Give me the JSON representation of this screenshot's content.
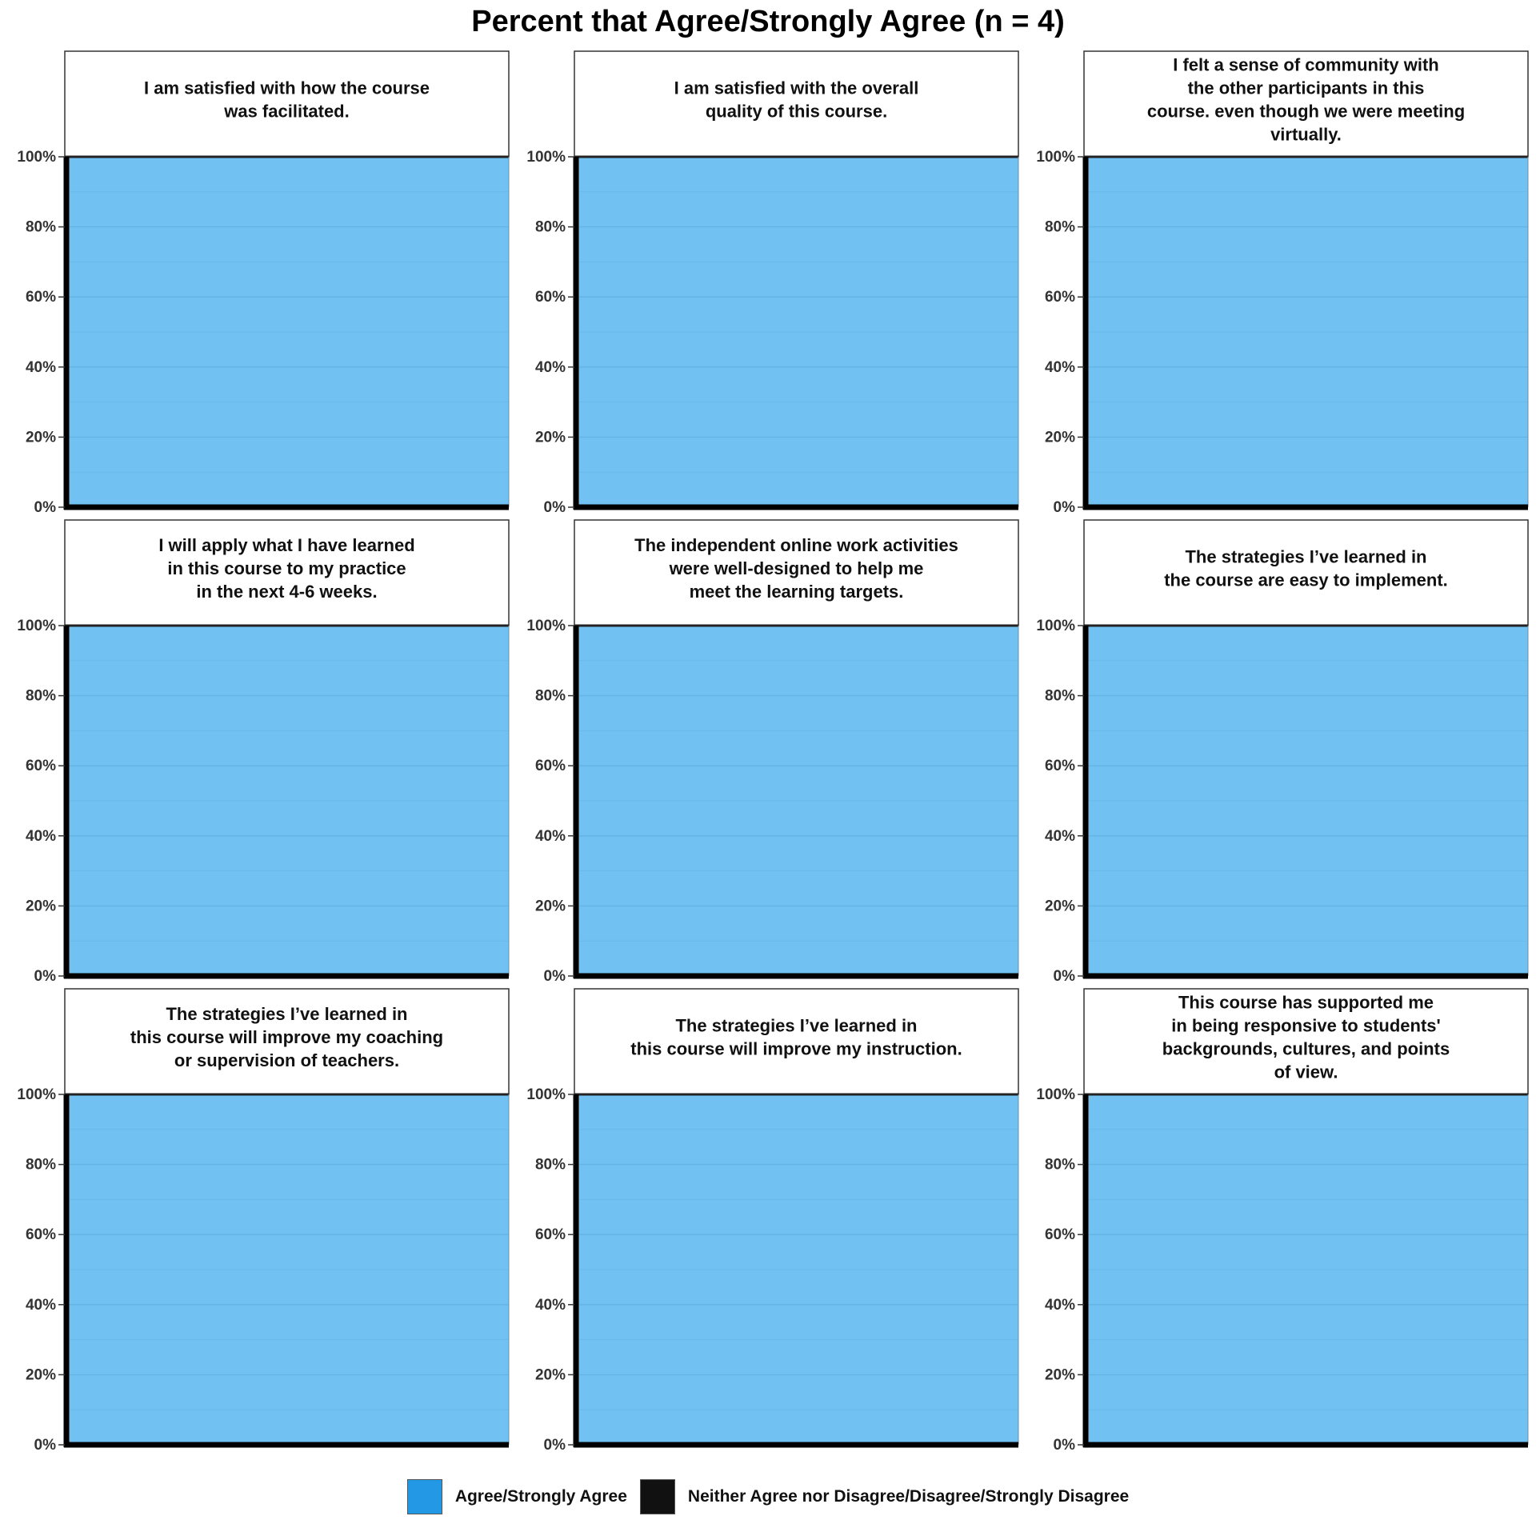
{
  "title": "Percent that Agree/Strongly Agree (n = 4)",
  "colors": {
    "agree": "#71c2f2",
    "agree_swatch": "#2399e5",
    "neither": "#111111",
    "gridline": "#5aa9df",
    "axis": "#000000",
    "strip_border": "#333333"
  },
  "legend": {
    "items": [
      {
        "label": "Agree/Strongly Agree",
        "color": "#2399e5"
      },
      {
        "label": "Neither Agree nor Disagree/Disagree/Strongly Disagree",
        "color": "#111111"
      }
    ]
  },
  "chart_data": {
    "type": "bar",
    "facets": [
      {
        "title_lines": [
          "I am satisfied with how the course",
          "was facilitated."
        ],
        "series": [
          {
            "name": "Agree/Strongly Agree",
            "value": 100
          },
          {
            "name": "Neither Agree nor Disagree/Disagree/Strongly Disagree",
            "value": 0
          }
        ]
      },
      {
        "title_lines": [
          "I am satisfied with the overall",
          "quality of this course."
        ],
        "series": [
          {
            "name": "Agree/Strongly Agree",
            "value": 100
          },
          {
            "name": "Neither Agree nor Disagree/Disagree/Strongly Disagree",
            "value": 0
          }
        ]
      },
      {
        "title_lines": [
          "I felt a sense of community with",
          "the other participants in this",
          "course. even though we were meeting",
          "virtually."
        ],
        "series": [
          {
            "name": "Agree/Strongly Agree",
            "value": 100
          },
          {
            "name": "Neither Agree nor Disagree/Disagree/Strongly Disagree",
            "value": 0
          }
        ]
      },
      {
        "title_lines": [
          "I will apply what I have learned",
          "in this course to my practice",
          "in the next 4-6 weeks."
        ],
        "series": [
          {
            "name": "Agree/Strongly Agree",
            "value": 100
          },
          {
            "name": "Neither Agree nor Disagree/Disagree/Strongly Disagree",
            "value": 0
          }
        ]
      },
      {
        "title_lines": [
          "The independent online work activities",
          "were well-designed to help me",
          "meet the learning targets."
        ],
        "series": [
          {
            "name": "Agree/Strongly Agree",
            "value": 100
          },
          {
            "name": "Neither Agree nor Disagree/Disagree/Strongly Disagree",
            "value": 0
          }
        ]
      },
      {
        "title_lines": [
          "The strategies I’ve learned in",
          "the course are easy to implement."
        ],
        "series": [
          {
            "name": "Agree/Strongly Agree",
            "value": 100
          },
          {
            "name": "Neither Agree nor Disagree/Disagree/Strongly Disagree",
            "value": 0
          }
        ]
      },
      {
        "title_lines": [
          "The strategies I’ve learned in",
          "this course will improve my coaching",
          "or supervision of teachers."
        ],
        "series": [
          {
            "name": "Agree/Strongly Agree",
            "value": 100
          },
          {
            "name": "Neither Agree nor Disagree/Disagree/Strongly Disagree",
            "value": 0
          }
        ]
      },
      {
        "title_lines": [
          "The strategies I’ve learned in",
          "this course will improve my instruction."
        ],
        "series": [
          {
            "name": "Agree/Strongly Agree",
            "value": 100
          },
          {
            "name": "Neither Agree nor Disagree/Disagree/Strongly Disagree",
            "value": 0
          }
        ]
      },
      {
        "title_lines": [
          "This course has supported me",
          "in being responsive to students'",
          "backgrounds, cultures, and points",
          "of view."
        ],
        "series": [
          {
            "name": "Agree/Strongly Agree",
            "value": 100
          },
          {
            "name": "Neither Agree nor Disagree/Disagree/Strongly Disagree",
            "value": 0
          }
        ]
      }
    ],
    "y_ticks": [
      0,
      20,
      40,
      60,
      80,
      100
    ],
    "y_tick_labels": [
      "0%",
      "20%",
      "40%",
      "60%",
      "80%",
      "100%"
    ],
    "ylim": [
      0,
      100
    ],
    "stacked": true,
    "grid": true,
    "legend_position": "bottom"
  }
}
